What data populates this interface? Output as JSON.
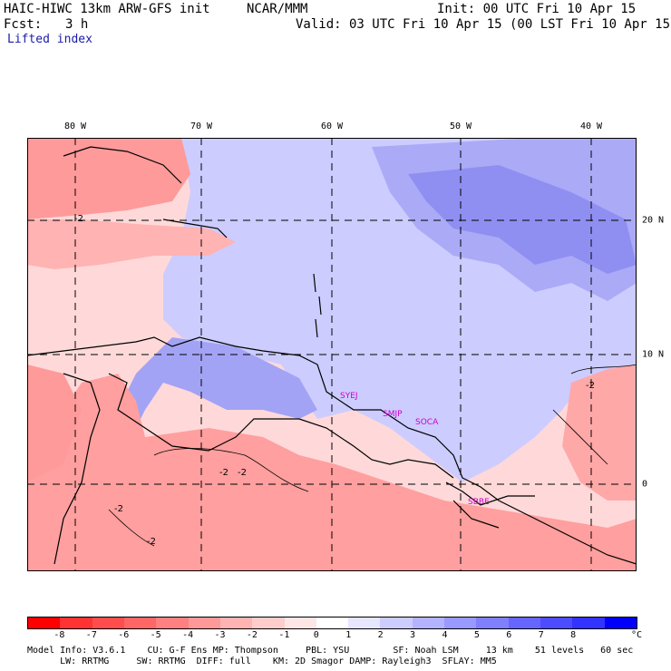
{
  "header": {
    "model": "HAIC-HIWC 13km ARW-GFS init",
    "org": "NCAR/MMM",
    "init": "Init: 00 UTC Fri 10 Apr 15",
    "fcst_label": "Fcst:",
    "fcst_value": "3 h",
    "valid": "Valid: 03 UTC Fri 10 Apr 15 (00 LST Fri 10 Apr 15)",
    "field": "Lifted index"
  },
  "lon_labels": [
    "80 W",
    "70 W",
    "60 W",
    "50 W",
    "40 W"
  ],
  "lat_labels": [
    "20 N",
    "10 N",
    "0"
  ],
  "contour_labels": [
    "-2",
    "-2",
    "-2",
    "-2",
    "-2",
    "-2"
  ],
  "stations": [
    "SYEJ",
    "SMJP",
    "SOCA",
    "SBBE"
  ],
  "colorbar": {
    "ticks": [
      "-8",
      "-7",
      "-6",
      "-5",
      "-4",
      "-3",
      "-2",
      "-1",
      "0",
      "1",
      "2",
      "3",
      "4",
      "5",
      "6",
      "7",
      "8"
    ],
    "unit": "°C",
    "colors": [
      "#ff0000",
      "#ff3333",
      "#ff4d4d",
      "#ff6666",
      "#ff8080",
      "#ff9999",
      "#ffb3b3",
      "#ffcccc",
      "#ffe6e6",
      "#ffffff",
      "#e6e6ff",
      "#ccccff",
      "#b3b3ff",
      "#9999ff",
      "#8080ff",
      "#6666ff",
      "#4d4dff",
      "#3333ff",
      "#0000ff"
    ]
  },
  "footer": {
    "line1": "Model Info: V3.6.1    CU: G-F Ens MP: Thompson     PBL: YSU        SF: Noah LSM     13 km    51 levels   60 sec",
    "line2": "      LW: RRTMG     SW: RRTMG  DIFF: full    KM: 2D Smagor DAMP: Rayleigh3  SFLAY: MM5"
  }
}
